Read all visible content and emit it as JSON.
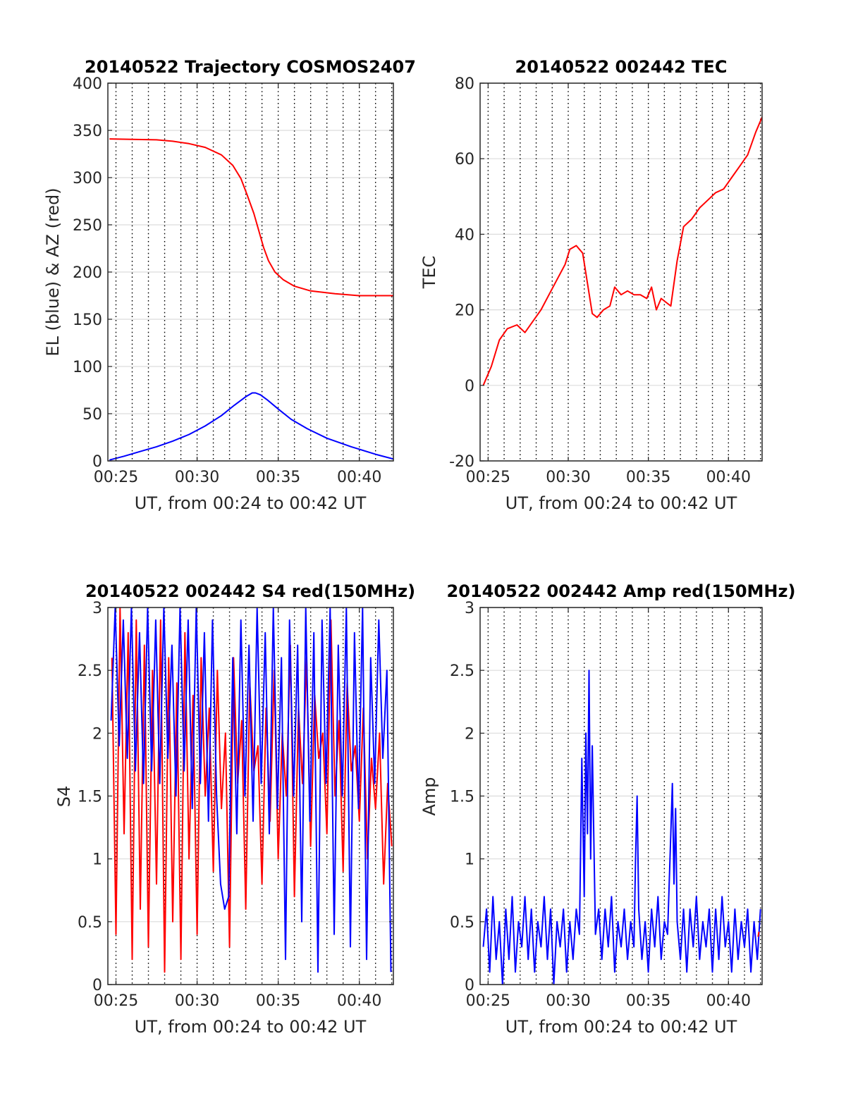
{
  "figure": {
    "background": "#ffffff"
  },
  "chart_data": [
    {
      "type": "line",
      "title": "20140522 Trajectory COSMOS2407",
      "xlabel": "UT, from 00:24 to 00:42 UT",
      "ylabel": "EL (blue) & AZ (red)",
      "xlim": [
        24.5,
        42.1
      ],
      "ylim": [
        0,
        400
      ],
      "xticks": [
        25,
        30,
        35,
        40
      ],
      "xtick_labels": [
        "00:25",
        "00:30",
        "00:35",
        "00:40"
      ],
      "yticks": [
        0,
        50,
        100,
        150,
        200,
        250,
        300,
        350,
        400
      ],
      "ytick_labels": [
        "0",
        "50",
        "100",
        "150",
        "200",
        "250",
        "300",
        "350",
        "400"
      ],
      "grid": true,
      "minute_gridlines": true,
      "series": [
        {
          "color": "#ff0000",
          "x": [
            24.6,
            26,
            27.5,
            28.5,
            29.5,
            30.5,
            31.5,
            32.2,
            32.7,
            33.1,
            33.5,
            33.8,
            34.1,
            34.4,
            34.8,
            35.3,
            36,
            37,
            38.5,
            40,
            42.1
          ],
          "y": [
            341,
            340.5,
            340,
            338.5,
            336,
            332,
            324,
            313,
            299,
            281,
            262,
            244,
            226,
            212,
            200,
            192,
            185,
            180,
            177,
            175,
            175
          ]
        },
        {
          "color": "#0000ff",
          "x": [
            24.6,
            25.5,
            26.5,
            27.5,
            28.5,
            29.5,
            30.5,
            31.5,
            32.3,
            33,
            33.4,
            33.6,
            33.9,
            34.3,
            35,
            35.8,
            36.8,
            38,
            39.5,
            41,
            42.1
          ],
          "y": [
            1,
            5,
            10,
            15,
            21,
            28,
            37,
            48,
            59,
            68,
            72,
            72,
            70,
            65,
            55,
            44,
            34,
            24,
            15,
            7,
            2
          ]
        }
      ]
    },
    {
      "type": "line",
      "title": "20140522 002442 TEC",
      "xlabel": "UT, from 00:24 to 00:42 UT",
      "ylabel": "TEC",
      "xlim": [
        24.5,
        42.1
      ],
      "ylim": [
        -20,
        80
      ],
      "xticks": [
        25,
        30,
        35,
        40
      ],
      "xtick_labels": [
        "00:25",
        "00:30",
        "00:35",
        "00:40"
      ],
      "yticks": [
        -20,
        0,
        20,
        40,
        60,
        80
      ],
      "ytick_labels": [
        "-20",
        "0",
        "20",
        "40",
        "60",
        "80"
      ],
      "grid": true,
      "minute_gridlines": true,
      "series": [
        {
          "color": "#ff0000",
          "x": [
            24.7,
            25.2,
            25.7,
            26.2,
            26.8,
            27.3,
            27.8,
            28.3,
            28.8,
            29.3,
            29.8,
            30.1,
            30.5,
            30.9,
            31.2,
            31.5,
            31.8,
            32.2,
            32.6,
            32.9,
            33.3,
            33.7,
            34.1,
            34.5,
            34.9,
            35.2,
            35.5,
            35.8,
            36.1,
            36.4,
            36.8,
            37.2,
            37.7,
            38.2,
            38.7,
            39.2,
            39.7,
            40.2,
            40.7,
            41.2,
            41.7,
            42.1
          ],
          "y": [
            0,
            5,
            12,
            15,
            16,
            14,
            17,
            20,
            24,
            28,
            32,
            36,
            37,
            35,
            27,
            19,
            18,
            20,
            21,
            26,
            24,
            25,
            24,
            24,
            23,
            26,
            20,
            23,
            22,
            21,
            33,
            42,
            44,
            47,
            49,
            51,
            52,
            55,
            58,
            61,
            67,
            71
          ]
        }
      ]
    },
    {
      "type": "line",
      "title": "20140522 002442 S4 red(150MHz)",
      "xlabel": "UT, from 00:24 to 00:42 UT",
      "ylabel": "S4",
      "xlim": [
        24.5,
        42.1
      ],
      "ylim": [
        0,
        3
      ],
      "xticks": [
        25,
        30,
        35,
        40
      ],
      "xtick_labels": [
        "00:25",
        "00:30",
        "00:35",
        "00:40"
      ],
      "yticks": [
        0,
        0.5,
        1,
        1.5,
        2,
        2.5,
        3
      ],
      "ytick_labels": [
        "0",
        "0.5",
        "1",
        "1.5",
        "2",
        "2.5",
        "3"
      ],
      "grid": true,
      "minute_gridlines": true,
      "series": [
        {
          "color": "#ff0000",
          "x": [
            24.75,
            25,
            25.25,
            25.5,
            25.75,
            26,
            26.25,
            26.5,
            26.75,
            27,
            27.25,
            27.5,
            27.75,
            28,
            28.25,
            28.5,
            28.75,
            29,
            29.25,
            29.5,
            29.75,
            30,
            30.25,
            30.5,
            30.75,
            31,
            31.25,
            31.5,
            31.75,
            32,
            32.25,
            32.5,
            32.75,
            33,
            33.25,
            33.5,
            33.75,
            34,
            34.25,
            34.5,
            34.75,
            35,
            35.25,
            35.5,
            35.75,
            36,
            36.25,
            36.5,
            36.75,
            37,
            37.25,
            37.5,
            37.75,
            38,
            38.25,
            38.5,
            38.75,
            39,
            39.25,
            39.5,
            39.75,
            40,
            40.25,
            40.5,
            40.75,
            41,
            41.25,
            41.5,
            41.75,
            42
          ],
          "y": [
            2.6,
            0.4,
            3.0,
            1.2,
            2.8,
            0.2,
            2.9,
            0.6,
            2.7,
            0.3,
            2.5,
            0.8,
            2.9,
            0.1,
            2.6,
            0.5,
            2.4,
            0.2,
            2.8,
            1.0,
            2.3,
            0.4,
            2.6,
            1.5,
            2.2,
            0.9,
            2.5,
            1.4,
            2.0,
            0.3,
            2.6,
            1.6,
            2.1,
            0.6,
            2.4,
            1.7,
            1.9,
            0.8,
            2.2,
            1.3,
            2.5,
            1.0,
            2.0,
            1.5,
            2.7,
            0.7,
            2.2,
            1.6,
            2.6,
            1.1,
            2.3,
            1.8,
            2.0,
            1.2,
            2.9,
            1.5,
            2.1,
            0.9,
            2.4,
            1.7,
            1.9,
            1.3,
            2.2,
            1.0,
            1.8,
            1.4,
            2.0,
            0.8,
            1.6,
            1.1
          ]
        },
        {
          "color": "#0000ff",
          "x": [
            24.7,
            24.95,
            25.2,
            25.45,
            25.7,
            25.95,
            26.2,
            26.45,
            26.7,
            26.95,
            27.2,
            27.45,
            27.7,
            27.95,
            28.2,
            28.45,
            28.7,
            28.95,
            29.2,
            29.45,
            29.7,
            29.95,
            30.2,
            30.45,
            30.7,
            30.95,
            31.2,
            31.45,
            31.7,
            31.95,
            32.2,
            32.45,
            32.7,
            32.95,
            33.2,
            33.45,
            33.7,
            33.95,
            34.2,
            34.45,
            34.7,
            34.95,
            35.2,
            35.45,
            35.7,
            35.95,
            36.2,
            36.45,
            36.7,
            36.95,
            37.2,
            37.45,
            37.7,
            37.95,
            38.2,
            38.45,
            38.7,
            38.95,
            39.2,
            39.45,
            39.7,
            39.95,
            40.2,
            40.45,
            40.7,
            40.95,
            41.2,
            41.45,
            41.7,
            41.95
          ],
          "y": [
            2.1,
            3.0,
            1.9,
            2.9,
            1.8,
            3.0,
            1.7,
            2.8,
            1.6,
            3.0,
            1.7,
            2.9,
            1.6,
            3.0,
            1.8,
            2.7,
            1.5,
            3.0,
            1.7,
            2.9,
            1.4,
            3.0,
            1.6,
            2.8,
            1.3,
            2.9,
            1.5,
            0.8,
            0.6,
            0.7,
            2.6,
            1.2,
            2.9,
            1.5,
            2.7,
            1.3,
            3.0,
            1.6,
            2.8,
            1.2,
            3.0,
            1.4,
            2.6,
            0.2,
            2.9,
            1.5,
            2.7,
            0.5,
            3.0,
            1.3,
            2.8,
            0.1,
            2.9,
            1.6,
            3.0,
            0.4,
            2.7,
            1.5,
            3.0,
            0.3,
            2.8,
            1.4,
            3.0,
            0.2,
            2.6,
            1.6,
            2.9,
            1.8,
            2.5,
            0.1
          ]
        }
      ]
    },
    {
      "type": "line",
      "title": "20140522 002442 Amp red(150MHz)",
      "xlabel": "UT, from 00:24 to 00:42 UT",
      "ylabel": "Amp",
      "xlim": [
        24.5,
        42.1
      ],
      "ylim": [
        0,
        3
      ],
      "xticks": [
        25,
        30,
        35,
        40
      ],
      "xtick_labels": [
        "00:25",
        "00:30",
        "00:35",
        "00:40"
      ],
      "yticks": [
        0,
        0.5,
        1,
        1.5,
        2,
        2.5,
        3
      ],
      "ytick_labels": [
        "0",
        "0.5",
        "1",
        "1.5",
        "2",
        "2.5",
        "3"
      ],
      "grid": true,
      "minute_gridlines": true,
      "series": [
        {
          "color": "#0000ff",
          "x": [
            24.7,
            24.9,
            25.1,
            25.3,
            25.5,
            25.7,
            25.9,
            26.1,
            26.3,
            26.5,
            26.7,
            26.9,
            27.1,
            27.3,
            27.5,
            27.7,
            27.9,
            28.1,
            28.3,
            28.5,
            28.7,
            28.9,
            29.1,
            29.3,
            29.5,
            29.7,
            29.9,
            30.1,
            30.3,
            30.5,
            30.7,
            30.85,
            31.0,
            31.1,
            31.2,
            31.3,
            31.4,
            31.5,
            31.7,
            31.9,
            32.1,
            32.3,
            32.5,
            32.7,
            32.9,
            33.1,
            33.3,
            33.5,
            33.7,
            33.9,
            34.1,
            34.2,
            34.3,
            34.4,
            34.6,
            34.8,
            35.0,
            35.2,
            35.4,
            35.6,
            35.8,
            36.0,
            36.2,
            36.4,
            36.5,
            36.6,
            36.7,
            36.8,
            37.0,
            37.2,
            37.4,
            37.6,
            37.8,
            38.0,
            38.2,
            38.4,
            38.6,
            38.8,
            39.0,
            39.2,
            39.4,
            39.6,
            39.8,
            40.0,
            40.2,
            40.4,
            40.6,
            40.8,
            41.0,
            41.2,
            41.4,
            41.6,
            41.8,
            42.0
          ],
          "y": [
            0.3,
            0.6,
            0.1,
            0.7,
            0.2,
            0.5,
            0.0,
            0.6,
            0.2,
            0.7,
            0.1,
            0.5,
            0.3,
            0.7,
            0.2,
            0.6,
            0.1,
            0.5,
            0.3,
            0.7,
            0.2,
            0.6,
            0.0,
            0.5,
            0.3,
            0.6,
            0.1,
            0.5,
            0.2,
            0.6,
            0.4,
            1.8,
            0.7,
            2.0,
            1.2,
            2.5,
            1.0,
            1.9,
            0.4,
            0.6,
            0.2,
            0.6,
            0.3,
            0.7,
            0.1,
            0.5,
            0.3,
            0.6,
            0.2,
            0.5,
            0.3,
            1.0,
            1.5,
            0.6,
            0.2,
            0.5,
            0.1,
            0.6,
            0.3,
            0.7,
            0.2,
            0.5,
            0.4,
            1.2,
            1.6,
            0.8,
            1.4,
            0.5,
            0.2,
            0.6,
            0.1,
            0.6,
            0.3,
            0.7,
            0.2,
            0.5,
            0.3,
            0.6,
            0.1,
            0.6,
            0.2,
            0.7,
            0.3,
            0.5,
            0.1,
            0.6,
            0.2,
            0.5,
            0.3,
            0.6,
            0.1,
            0.5,
            0.2,
            0.6
          ]
        },
        {
          "color": "#ff0000",
          "x": [
            41.85,
            41.9
          ],
          "y": [
            0.38,
            0.42
          ]
        }
      ]
    }
  ]
}
